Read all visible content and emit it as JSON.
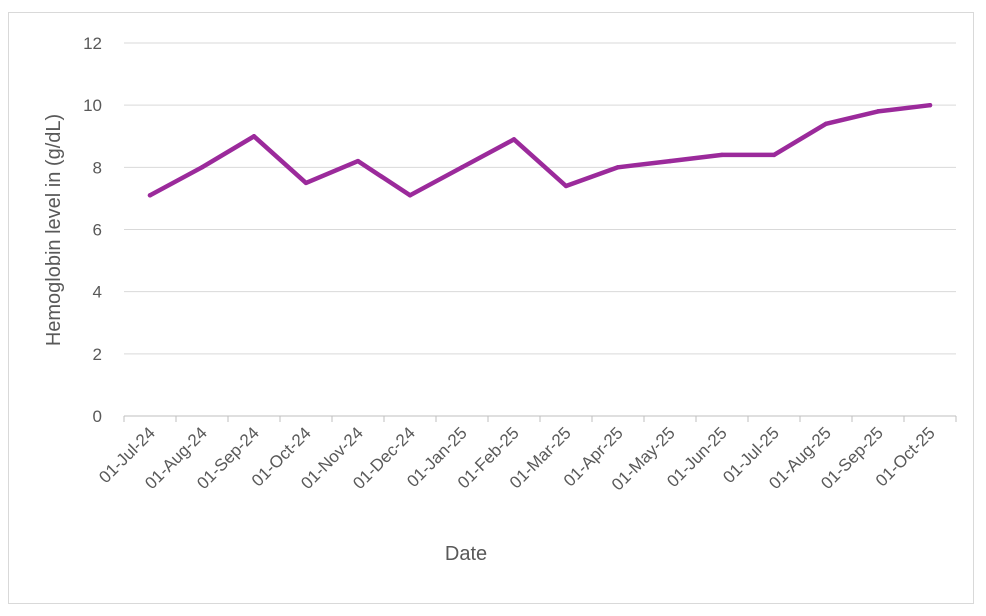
{
  "chart_data": {
    "type": "line",
    "xlabel": "Date",
    "ylabel": "Hemoglobin level in (g/dL)",
    "ylim": [
      0,
      12
    ],
    "yticks": [
      "0",
      "2",
      "4",
      "6",
      "8",
      "10",
      "12"
    ],
    "grid": true,
    "legend": "none",
    "categories": [
      "01-Jul-24",
      "01-Aug-24",
      "01-Sep-24",
      "01-Oct-24",
      "01-Nov-24",
      "01-Dec-24",
      "01-Jan-25",
      "01-Feb-25",
      "01-Mar-25",
      "01-Apr-25",
      "01-May-25",
      "01-Jun-25",
      "01-Jul-25",
      "01-Aug-25",
      "01-Sep-25",
      "01-Oct-25"
    ],
    "series": [
      {
        "color": "#9b2a9b",
        "values": [
          7.1,
          8.0,
          9.0,
          7.5,
          8.2,
          7.1,
          8.0,
          8.9,
          7.4,
          8.0,
          8.2,
          8.4,
          8.4,
          9.4,
          9.8,
          10.0
        ]
      }
    ]
  }
}
